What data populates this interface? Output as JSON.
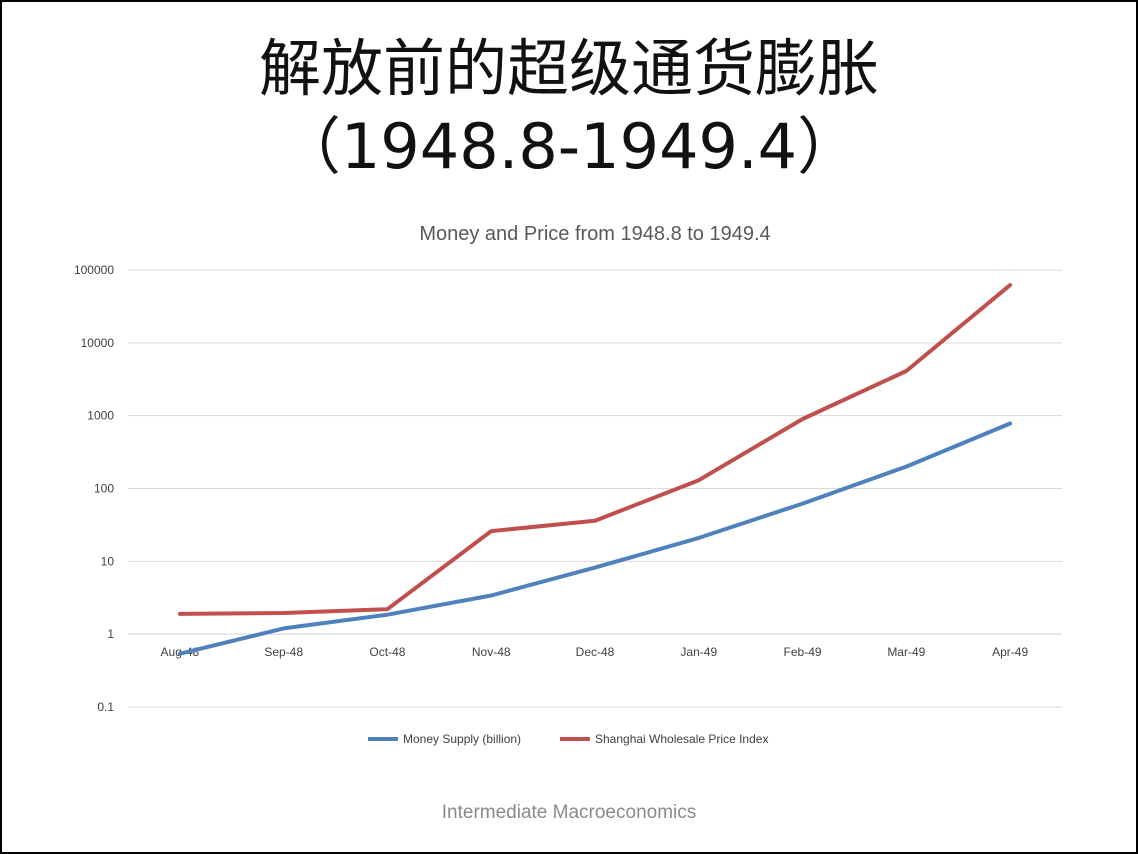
{
  "slide": {
    "title_line1": "解放前的超级通货膨胀",
    "title_line2": "（1948.8-1949.4）",
    "footer": "Intermediate Macroeconomics"
  },
  "chart_data": {
    "type": "line",
    "title": "Money and Price from 1948.8 to 1949.4",
    "xlabel": "",
    "ylabel": "",
    "y_scale": "log",
    "ylim": [
      0.1,
      100000
    ],
    "y_ticks": [
      "0.1",
      "1",
      "10",
      "100",
      "1000",
      "10000",
      "100000"
    ],
    "y_tick_values": [
      0.1,
      1,
      10,
      100,
      1000,
      10000,
      100000
    ],
    "categories": [
      "Aug-48",
      "Sep-48",
      "Oct-48",
      "Nov-48",
      "Dec-48",
      "Jan-49",
      "Feb-49",
      "Mar-49",
      "Apr-49"
    ],
    "x_axis_crosses_at": 1,
    "grid": true,
    "legend_position": "bottom",
    "series": [
      {
        "name": "Money Supply (billion)",
        "color": "#4f81bd",
        "values": [
          0.54,
          1.2,
          1.85,
          3.4,
          8.2,
          21,
          62,
          200,
          780
        ]
      },
      {
        "name": "Shanghai Wholesale Price Index",
        "color": "#c0504d",
        "values": [
          1.9,
          1.95,
          2.2,
          26,
          36,
          130,
          900,
          4100,
          62000
        ]
      }
    ]
  }
}
